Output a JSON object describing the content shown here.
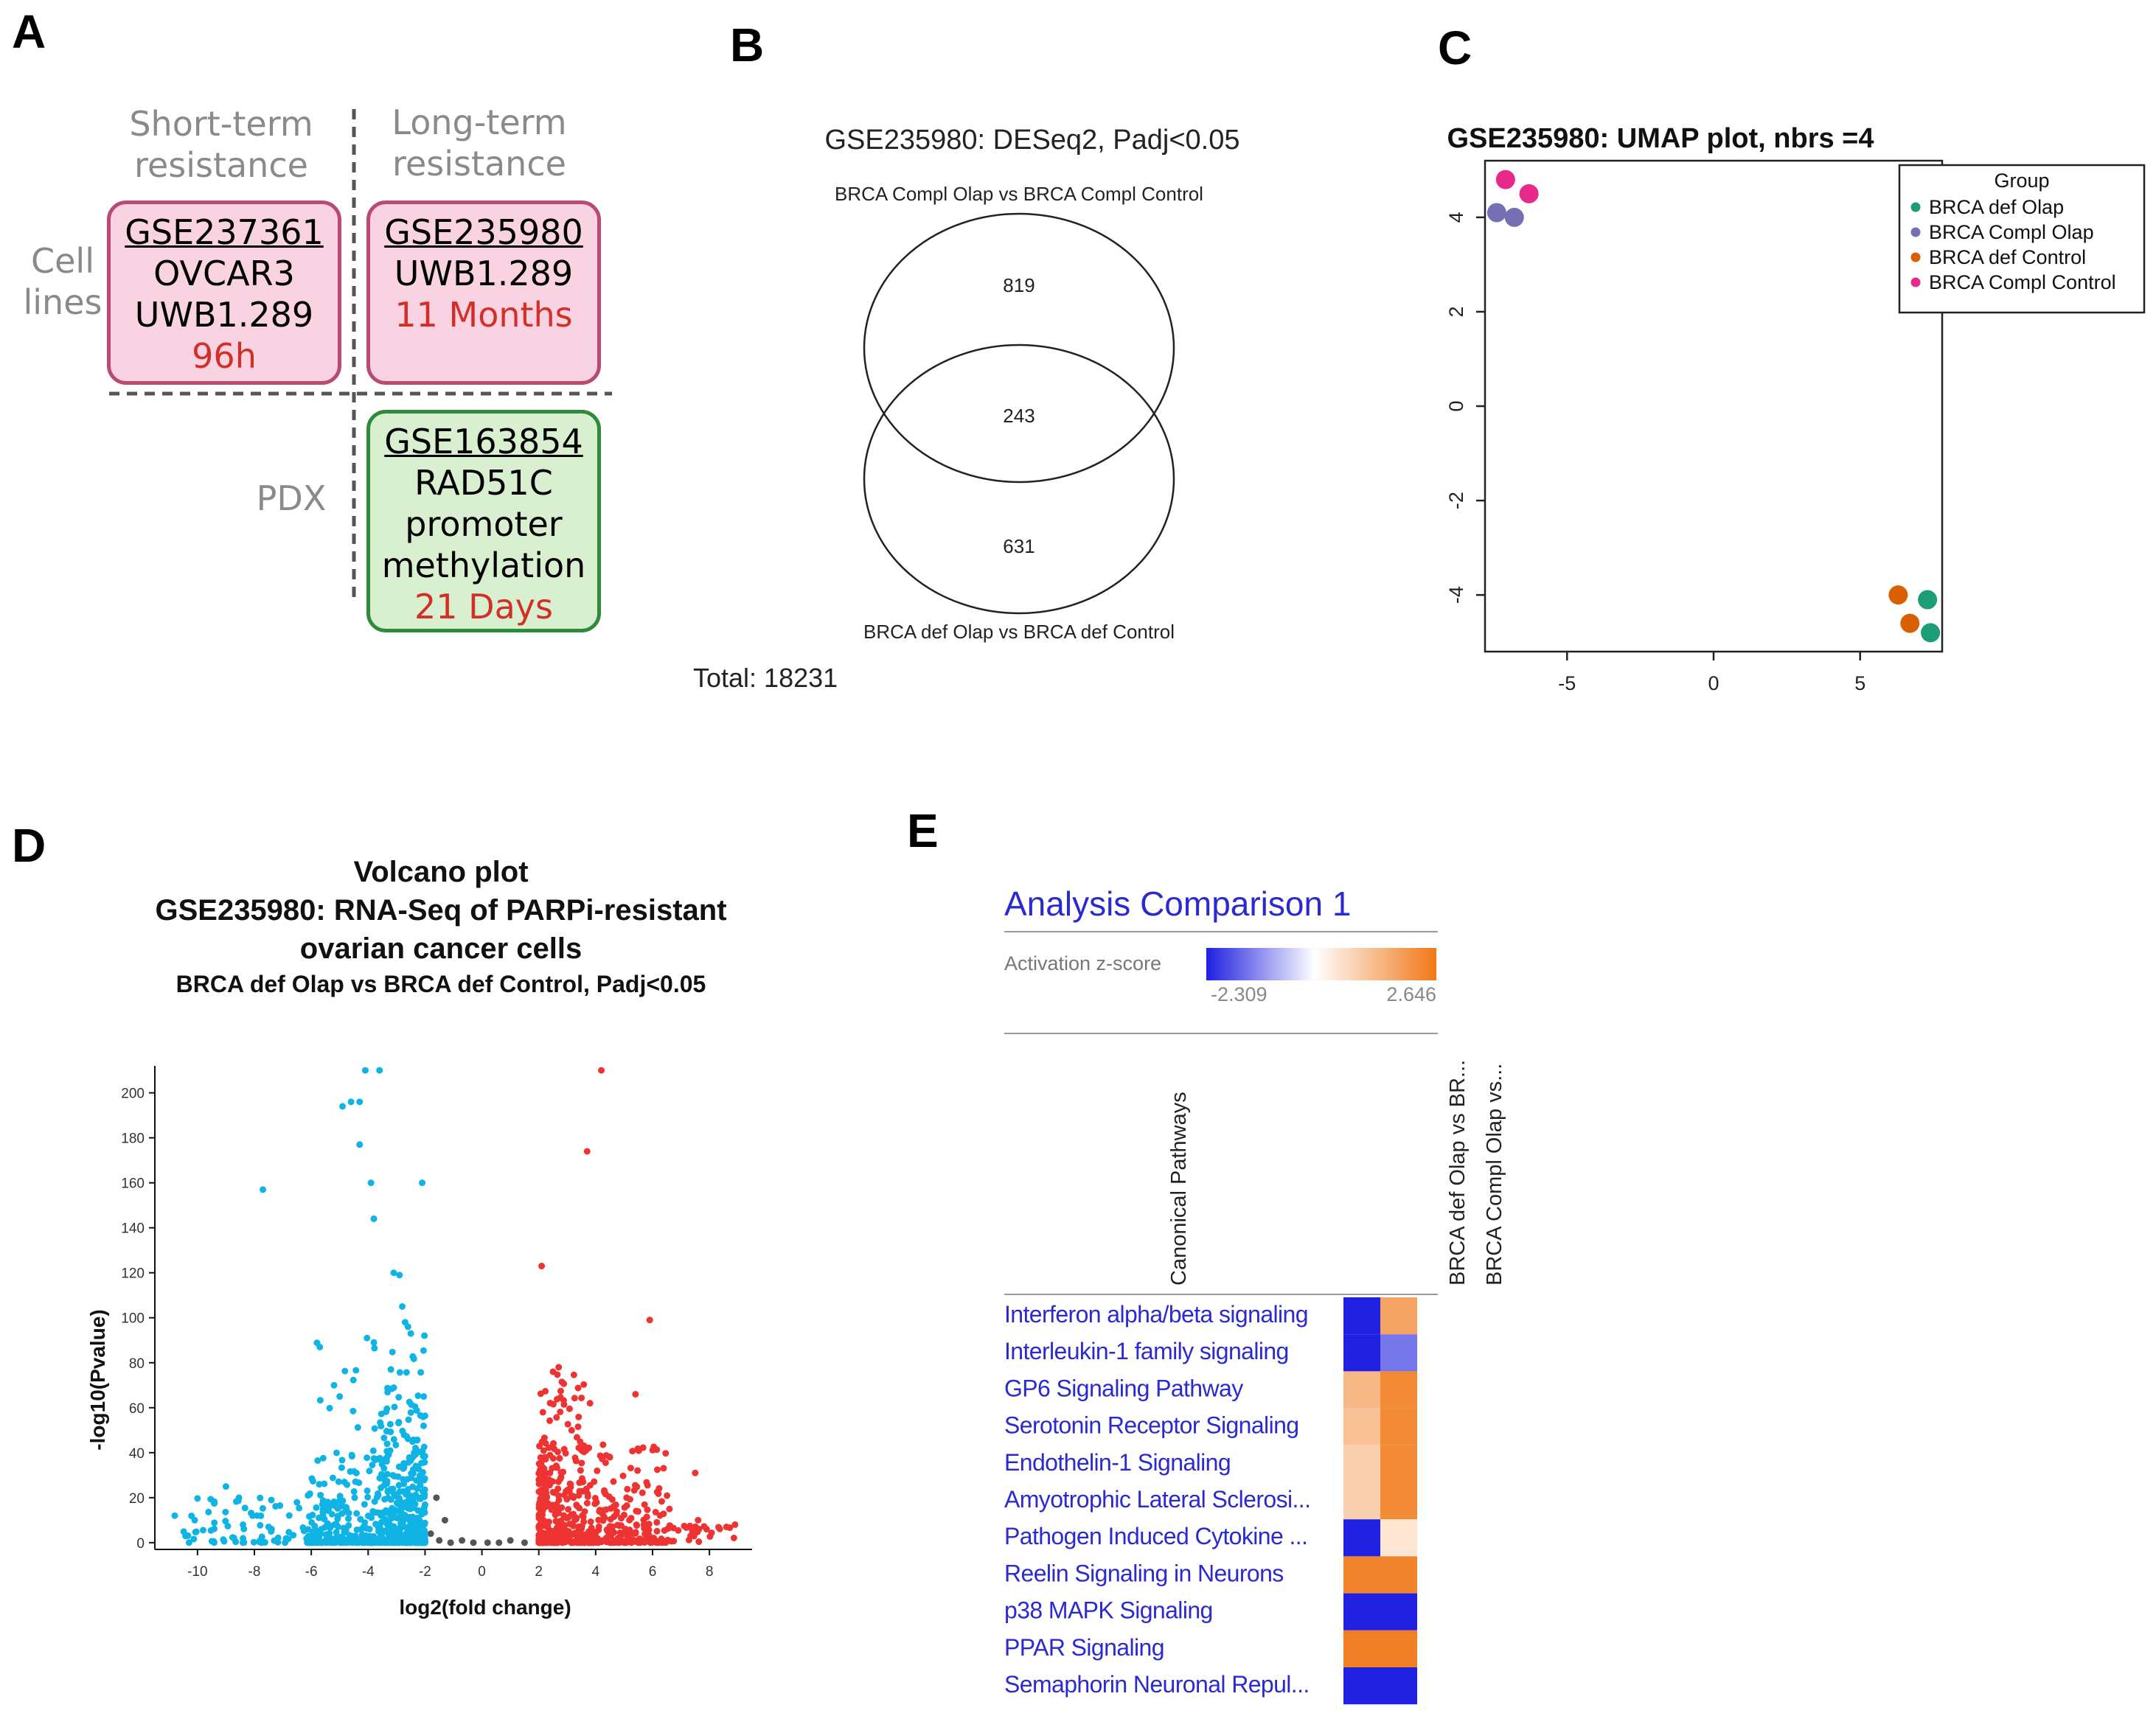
{
  "panels": {
    "a": "A",
    "b": "B",
    "c": "C",
    "d": "D",
    "e": "E"
  },
  "panel_a": {
    "col_short": [
      "Short-term",
      "resistance"
    ],
    "col_long": [
      "Long-term",
      "resistance"
    ],
    "row_cell": [
      "Cell",
      "lines"
    ],
    "row_pdx": "PDX",
    "cards": [
      {
        "accession": "GSE237361",
        "lines": [
          "OVCAR3",
          "UWB1.289"
        ],
        "duration": "96h"
      },
      {
        "accession": "GSE235980",
        "lines": [
          "UWB1.289"
        ],
        "duration": "11 Months"
      },
      {
        "accession": "GSE163854",
        "lines": [
          "RAD51C",
          "promoter",
          "methylation"
        ],
        "duration": "21 Days"
      }
    ],
    "colors": {
      "pink_fill": "#f9d3e1",
      "pink_border": "#b94a74",
      "green_fill": "#d9f0d0",
      "green_border": "#2e8b3b",
      "duration": "#d22f27"
    }
  },
  "chart_data": [
    {
      "type": "venn",
      "title": "GSE235980: DESeq2, Padj<0.05",
      "sets": [
        "BRCA Compl Olap vs BRCA Compl Control",
        "BRCA def Olap vs BRCA def Control"
      ],
      "only_a": 819,
      "intersection": 243,
      "only_b": 631,
      "total_label": "Total: 18231"
    },
    {
      "type": "scatter",
      "title": "GSE235980: UMAP plot, nbrs =4",
      "legend_title": "Group",
      "xlim": [
        -7.8,
        7.8
      ],
      "ylim": [
        -5.2,
        5.2
      ],
      "xticks": [
        -5,
        0,
        5
      ],
      "yticks": [
        4,
        2,
        0,
        -2,
        -4
      ],
      "series": [
        {
          "name": "BRCA def Olap",
          "color": "#1b9e77",
          "points": [
            [
              7.3,
              -4.1
            ],
            [
              7.4,
              -4.8
            ]
          ]
        },
        {
          "name": "BRCA Compl Olap",
          "color": "#7570b3",
          "points": [
            [
              -7.4,
              4.1
            ],
            [
              -6.8,
              4.0
            ]
          ]
        },
        {
          "name": "BRCA def Control",
          "color": "#d95f02",
          "points": [
            [
              6.3,
              -4.0
            ],
            [
              6.7,
              -4.6
            ]
          ]
        },
        {
          "name": "BRCA Compl Control",
          "color": "#e7298a",
          "points": [
            [
              -7.1,
              4.8
            ],
            [
              -6.3,
              4.5
            ]
          ]
        }
      ]
    },
    {
      "type": "scatter",
      "title_lines": [
        "Volcano plot",
        "GSE235980: RNA-Seq of PARPi-resistant",
        "ovarian cancer cells"
      ],
      "subtitle": "BRCA def Olap vs BRCA def Control, Padj<0.05",
      "xlabel": "log2(fold change)",
      "ylabel": "-log10(Pvalue)",
      "xlim": [
        -11.5,
        9.5
      ],
      "ylim": [
        -3,
        212
      ],
      "xticks": [
        -10,
        -8,
        -6,
        -4,
        -2,
        0,
        2,
        4,
        6,
        8
      ],
      "yticks": [
        0,
        20,
        40,
        60,
        80,
        100,
        120,
        140,
        160,
        180,
        200
      ],
      "colors": {
        "down": "#10b4e4",
        "up": "#ee3333",
        "ns": "#555555"
      },
      "highlighted_points": [
        [
          -4.1,
          210
        ],
        [
          -3.6,
          210
        ],
        [
          -4.9,
          194
        ],
        [
          -4.3,
          196
        ],
        [
          -4.6,
          196
        ],
        [
          -4.3,
          177
        ],
        [
          -3.9,
          160
        ],
        [
          -2.1,
          160
        ],
        [
          -7.7,
          157
        ],
        [
          -3.8,
          144
        ],
        [
          -3.1,
          120
        ],
        [
          -2.9,
          119
        ],
        [
          -2.8,
          105
        ],
        [
          -2.7,
          98
        ],
        [
          -2.6,
          96
        ],
        [
          -2.5,
          93
        ],
        [
          -3.8,
          89
        ],
        [
          -5.7,
          87
        ],
        [
          -3.2,
          77
        ],
        [
          -5.2,
          70
        ],
        [
          -5.0,
          65
        ],
        [
          -9.0,
          25
        ],
        [
          -10.8,
          12
        ],
        [
          -10.1,
          10
        ],
        [
          -8.4,
          8
        ],
        [
          -7.5,
          7
        ],
        [
          4.2,
          210
        ],
        [
          3.7,
          174
        ],
        [
          2.1,
          123
        ],
        [
          5.9,
          99
        ],
        [
          2.7,
          78
        ],
        [
          2.5,
          76
        ],
        [
          5.4,
          66
        ],
        [
          3.8,
          62
        ],
        [
          4.5,
          38
        ],
        [
          7.5,
          31
        ],
        [
          8.9,
          8
        ],
        [
          8.6,
          7
        ],
        [
          7.6,
          10
        ],
        [
          7.9,
          6
        ],
        [
          -1.8,
          4
        ],
        [
          -1.5,
          1
        ],
        [
          -1.1,
          0
        ],
        [
          -0.7,
          1
        ],
        [
          -0.3,
          0
        ],
        [
          0.2,
          0
        ],
        [
          0.6,
          0
        ],
        [
          1.0,
          1
        ],
        [
          1.5,
          0
        ],
        [
          -1.3,
          10
        ],
        [
          -1.6,
          20
        ]
      ]
    },
    {
      "type": "heatmap",
      "title": "Analysis Comparison 1",
      "scale_label": "Activation z-score",
      "scale_min": "-2.309",
      "scale_max": "2.646",
      "row_header": "Canonical Pathways",
      "columns": [
        "BRCA def Olap vs BR...",
        "BRCA Compl Olap vs..."
      ],
      "rows": [
        {
          "label": "Interferon alpha/beta signaling",
          "values": [
            -2.3,
            1.8
          ]
        },
        {
          "label": "Interleukin-1 family signaling",
          "values": [
            -2.3,
            -1.4
          ]
        },
        {
          "label": "GP6 Signaling Pathway",
          "values": [
            1.4,
            2.3
          ]
        },
        {
          "label": "Serotonin Receptor Signaling",
          "values": [
            1.2,
            2.3
          ]
        },
        {
          "label": "Endothelin-1 Signaling",
          "values": [
            0.9,
            2.3
          ]
        },
        {
          "label": "Amyotrophic Lateral Sclerosi...",
          "values": [
            0.9,
            2.3
          ]
        },
        {
          "label": "Pathogen Induced Cytokine ...",
          "values": [
            -2.3,
            0.5
          ]
        },
        {
          "label": "Reelin Signaling in Neurons",
          "values": [
            2.4,
            2.4
          ]
        },
        {
          "label": "p38 MAPK Signaling",
          "values": [
            -2.3,
            -2.3
          ]
        },
        {
          "label": "PPAR Signaling",
          "values": [
            2.5,
            2.5
          ]
        },
        {
          "label": "Semaphorin Neuronal Repul...",
          "values": [
            -2.3,
            -2.3
          ]
        }
      ]
    }
  ]
}
